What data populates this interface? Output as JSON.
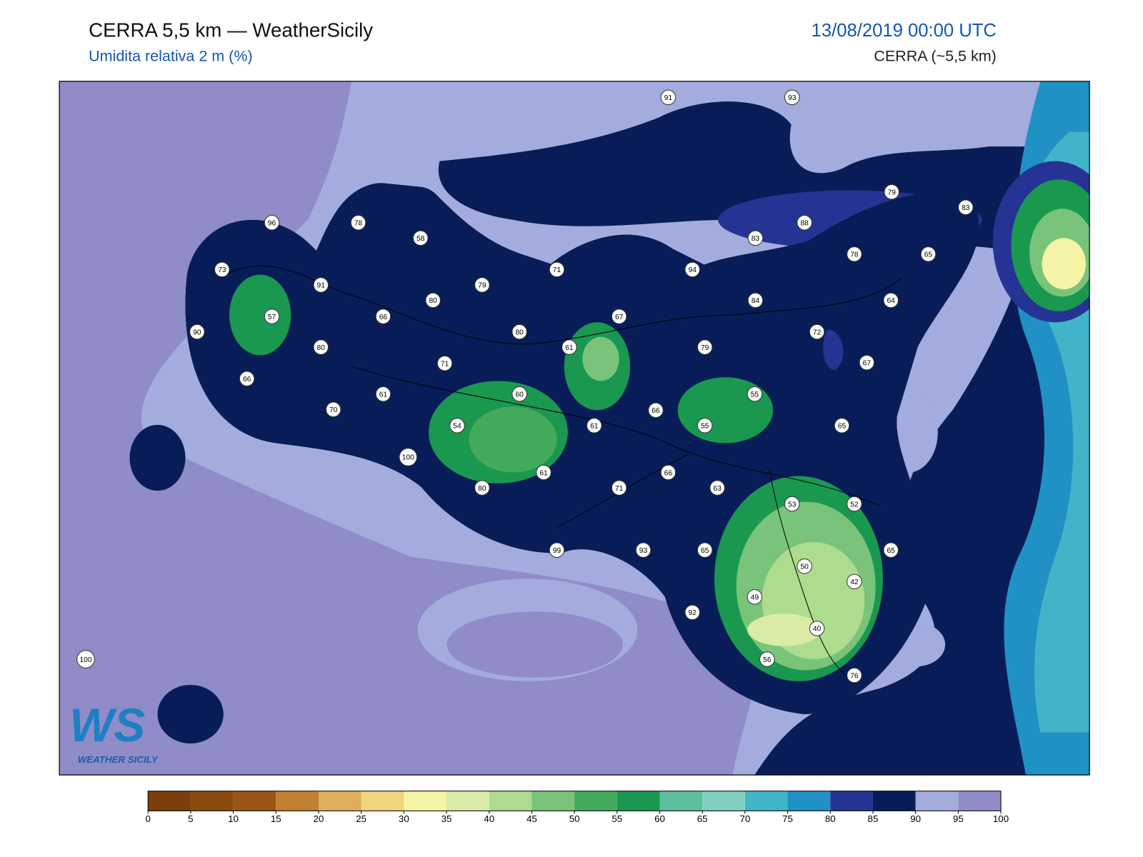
{
  "header": {
    "title": "CERRA 5,5 km — WeatherSicily",
    "subtitle": "Umidita relativa 2 m (%)",
    "datetime": "13/08/2019 00:00 UTC",
    "model": "CERRA (~5,5 km)"
  },
  "logo": {
    "mark": "WS",
    "text": "WEATHER SICILY"
  },
  "stations": [
    91,
    93,
    96,
    78,
    58,
    79,
    83,
    88,
    83,
    73,
    91,
    79,
    71,
    94,
    78,
    65,
    80,
    84,
    64,
    57,
    66,
    67,
    90,
    80,
    72,
    80,
    61,
    79,
    67,
    71,
    66,
    61,
    60,
    55,
    70,
    66,
    54,
    61,
    55,
    65,
    100,
    61,
    66,
    63,
    80,
    71,
    53,
    52,
    99,
    93,
    65,
    65,
    50,
    42,
    49,
    92,
    40,
    56,
    76,
    100
  ],
  "colorbar": {
    "ticks": [
      0,
      5,
      10,
      15,
      20,
      25,
      30,
      35,
      40,
      45,
      50,
      55,
      60,
      65,
      70,
      75,
      80,
      85,
      90,
      95,
      100
    ],
    "colors": [
      "#7a3f0a",
      "#8b4a10",
      "#9b5516",
      "#c08030",
      "#deae5a",
      "#f1d57c",
      "#f6f4a6",
      "#d9eca6",
      "#aedc8f",
      "#79c47a",
      "#43aa5c",
      "#1a9850",
      "#5dbea0",
      "#80cfc0",
      "#42b4c8",
      "#2091c4",
      "#253494",
      "#081d58",
      "#a3acdc",
      "#8f8cc8"
    ]
  }
}
